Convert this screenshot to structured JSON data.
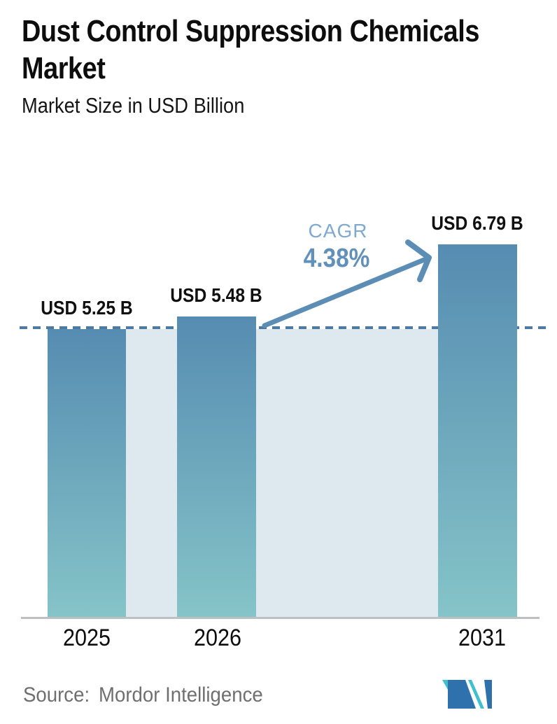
{
  "header": {
    "title_line1": "Dust Control Suppression Chemicals",
    "title_line2": "Market",
    "subtitle": "Market Size in USD Billion"
  },
  "chart_data": {
    "type": "bar",
    "title": "Dust Control Suppression Chemicals Market",
    "subtitle": "Market Size in USD Billion",
    "categories": [
      "2025",
      "2026",
      "2031"
    ],
    "values": [
      5.25,
      5.48,
      6.79
    ],
    "bar_labels": [
      "USD 5.25 B",
      "USD 5.48 B",
      "USD 6.79 B"
    ],
    "unit": "USD Billion",
    "cagr": {
      "label": "CAGR",
      "value": "4.38%"
    },
    "reference_line_value": 5.25,
    "reference_line_style": "dashed",
    "ylim": [
      0,
      7.5
    ],
    "grid": false,
    "legend": false,
    "colors": {
      "bar_top": "#568cb1",
      "bar_bottom": "#85c4c8",
      "band": "#dde9ef",
      "dashed_line": "#4c7aa2",
      "arrow": "#5b8db5",
      "cagr_label": "#7fa9cf",
      "cagr_value": "#6191bb",
      "axis": "#bcc0c0",
      "source_text": "#6f6f6f",
      "logo_blue": "#2f71ad",
      "logo_teal": "#3fc0cd"
    }
  },
  "footer": {
    "source_label": "Source:",
    "source_name": "Mordor Intelligence"
  }
}
